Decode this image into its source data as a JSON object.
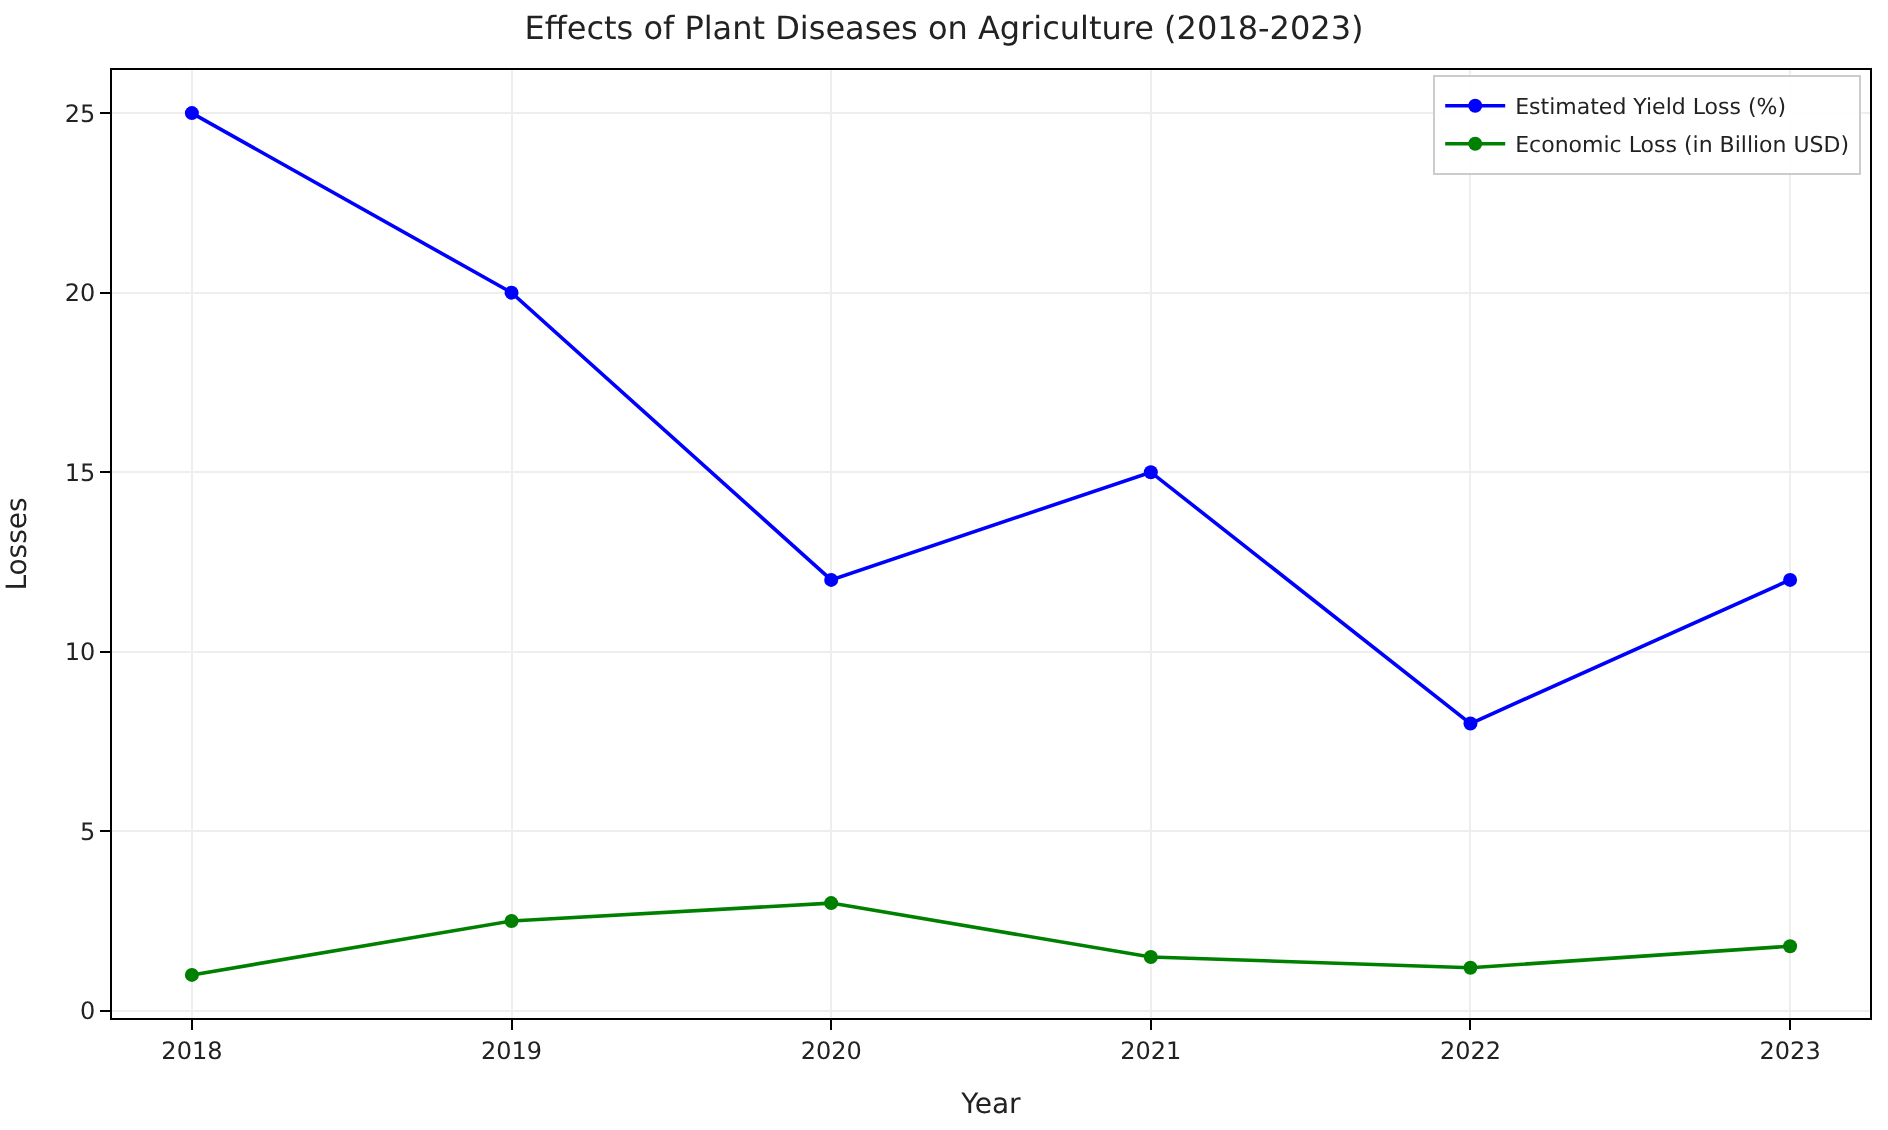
{
  "chart_data": {
    "type": "line",
    "title": "Effects of Plant Diseases on Agriculture (2018-2023)",
    "xlabel": "Year",
    "ylabel": "Losses",
    "x": [
      2018,
      2019,
      2020,
      2021,
      2022,
      2023
    ],
    "series": [
      {
        "name": "Estimated Yield Loss (%)",
        "color": "#0000ff",
        "values": [
          25,
          20,
          12,
          15,
          8,
          12
        ]
      },
      {
        "name": "Economic Loss (in Billion USD)",
        "color": "#008000",
        "values": [
          1,
          2.5,
          3,
          1.5,
          1.2,
          1.8
        ]
      }
    ],
    "xlim": [
      2017.75,
      2023.25
    ],
    "xticks": [
      2018,
      2019,
      2020,
      2021,
      2022,
      2023
    ],
    "ylim": [
      -0.2,
      26.2
    ],
    "yticks": [
      0,
      5,
      10,
      15,
      20,
      25
    ],
    "grid": true,
    "legend": "top right",
    "marker": "circle",
    "line_style": "solid"
  }
}
